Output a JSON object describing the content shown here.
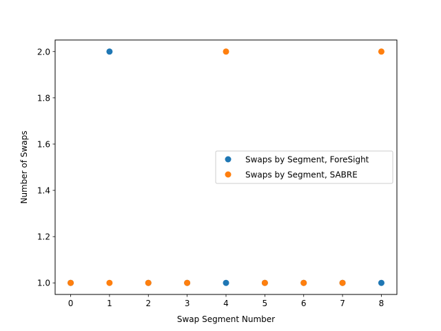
{
  "chart_data": {
    "type": "scatter",
    "title": "",
    "xlabel": "Swap Segment Number",
    "ylabel": "Number of Swaps",
    "xlim": [
      -0.4,
      8.4
    ],
    "ylim": [
      0.95,
      2.05
    ],
    "xticks": [
      0,
      1,
      2,
      3,
      4,
      5,
      6,
      7,
      8
    ],
    "xtick_labels": [
      "0",
      "1",
      "2",
      "3",
      "4",
      "5",
      "6",
      "7",
      "8"
    ],
    "yticks": [
      1.0,
      1.2,
      1.4,
      1.6,
      1.8,
      2.0
    ],
    "ytick_labels": [
      "1.0",
      "1.2",
      "1.4",
      "1.6",
      "1.8",
      "2.0"
    ],
    "grid": false,
    "legend_position": "center-right",
    "series": [
      {
        "name": "Swaps by Segment, ForeSight",
        "color": "#1f77b4",
        "x": [
          0,
          1,
          2,
          3,
          4,
          5,
          6,
          7,
          8
        ],
        "y": [
          1,
          2,
          1,
          1,
          1,
          1,
          1,
          1,
          1
        ]
      },
      {
        "name": "Swaps by Segment, SABRE",
        "color": "#ff7f0e",
        "x": [
          0,
          1,
          2,
          3,
          4,
          5,
          6,
          7,
          8
        ],
        "y": [
          1,
          1,
          1,
          1,
          2,
          1,
          1,
          1,
          2
        ]
      }
    ]
  }
}
